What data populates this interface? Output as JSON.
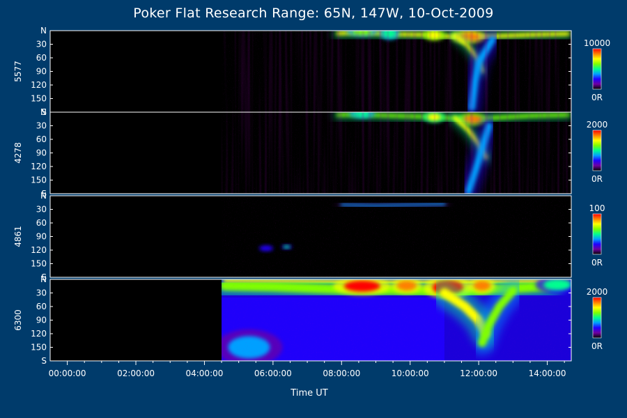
{
  "chart_data": {
    "type": "heatmap",
    "title": "Poker Flat Research Range: 65N, 147W, 10-Oct-2009",
    "xlabel": "Time UT",
    "x_ticks": [
      "00:00:00",
      "02:00:00",
      "04:00:00",
      "06:00:00",
      "08:00:00",
      "10:00:00",
      "12:00:00",
      "14:00:00"
    ],
    "x_range_hours": [
      -0.5,
      14.7
    ],
    "data_start_hour": 4.5,
    "y_tick_labels": [
      "N",
      "30",
      "60",
      "90",
      "120",
      "150",
      "S"
    ],
    "y_range_deg": [
      0,
      180
    ],
    "panels": [
      {
        "ylabel": "5577",
        "colorbar_max": "10000",
        "colorbar_min": "0R"
      },
      {
        "ylabel": "4278",
        "colorbar_max": "2000",
        "colorbar_min": "0R"
      },
      {
        "ylabel": "4861",
        "colorbar_max": "100",
        "colorbar_min": "0R"
      },
      {
        "ylabel": "6300",
        "colorbar_max": "2000",
        "colorbar_min": "0R"
      }
    ],
    "colormap": [
      "#000000",
      "#7000a0",
      "#2000ff",
      "#00a0ff",
      "#00ff90",
      "#80ff00",
      "#ffff00",
      "#ff8000",
      "#ff0000"
    ],
    "background_color": "#003b6b"
  }
}
